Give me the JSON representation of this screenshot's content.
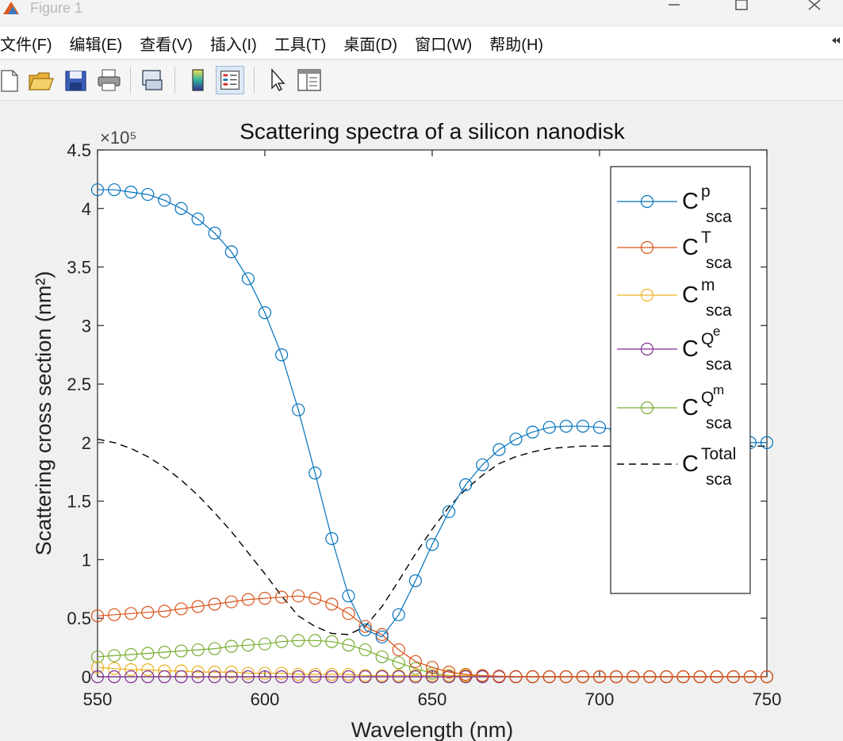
{
  "window": {
    "title": "Figure 1"
  },
  "menu": {
    "items": [
      "文件(F)",
      "编辑(E)",
      "查看(V)",
      "插入(I)",
      "工具(T)",
      "桌面(D)",
      "窗口(W)",
      "帮助(H)"
    ]
  },
  "toolbar": {
    "buttons": [
      "new-figure-icon",
      "open-file-icon",
      "save-icon",
      "print-icon",
      "link-plot-icon",
      "colorbar-icon",
      "legend-icon",
      "edit-plot-icon",
      "property-inspector-icon"
    ]
  },
  "chart_data": {
    "type": "line",
    "title": "Scattering spectra of a silicon nanodisk",
    "xlabel": "Wavelength (nm)",
    "ylabel": "Scattering cross section (nm²)",
    "y_exponent_label": "×10⁵",
    "xlim": [
      550,
      750
    ],
    "ylim": [
      0,
      4.5
    ],
    "xticks": [
      550,
      600,
      650,
      700,
      750
    ],
    "yticks": [
      0,
      0.5,
      1,
      1.5,
      2,
      2.5,
      3,
      3.5,
      4,
      4.5
    ],
    "ytick_labels": [
      "0",
      "0.5",
      "1",
      "1.5",
      "2",
      "2.5",
      "3",
      "3.5",
      "4",
      "4.5"
    ],
    "grid": false,
    "legend_position": "top-right",
    "x": [
      550,
      555,
      560,
      565,
      570,
      575,
      580,
      585,
      590,
      595,
      600,
      605,
      610,
      615,
      620,
      625,
      630,
      635,
      640,
      645,
      650,
      655,
      660,
      665,
      670,
      675,
      680,
      685,
      690,
      695,
      700,
      705,
      710,
      715,
      720,
      725,
      730,
      735,
      740,
      745,
      750
    ],
    "series": [
      {
        "name": "C^p_sca",
        "base": "C",
        "sup": "p",
        "sub": "sca",
        "color": "#0072bd",
        "line": "solid",
        "marker": "circle",
        "values": [
          4.16,
          4.16,
          4.14,
          4.12,
          4.07,
          4.0,
          3.91,
          3.79,
          3.63,
          3.4,
          3.11,
          2.75,
          2.28,
          1.74,
          1.18,
          0.69,
          0.4,
          0.34,
          0.53,
          0.82,
          1.13,
          1.41,
          1.64,
          1.81,
          1.94,
          2.03,
          2.09,
          2.13,
          2.14,
          2.14,
          2.13,
          2.11,
          2.09,
          2.07,
          2.05,
          2.04,
          2.02,
          2.01,
          2.01,
          2.0,
          2.0
        ]
      },
      {
        "name": "C^T_sca",
        "base": "C",
        "sup": "T",
        "sub": "sca",
        "color": "#d95319",
        "line": "solid",
        "marker": "circle",
        "values": [
          0.52,
          0.53,
          0.54,
          0.55,
          0.56,
          0.58,
          0.6,
          0.62,
          0.64,
          0.66,
          0.67,
          0.68,
          0.69,
          0.67,
          0.62,
          0.54,
          0.43,
          0.36,
          0.23,
          0.13,
          0.08,
          0.04,
          0.02,
          0.01,
          0.005,
          0.002,
          0.001,
          0.0,
          0.0,
          0.0,
          0.0,
          0.0,
          0.0,
          0.0,
          0.0,
          0.0,
          0.0,
          0.0,
          0.0,
          0.0,
          0.0
        ]
      },
      {
        "name": "C^m_sca",
        "base": "C",
        "sup": "m",
        "sub": "sca",
        "color": "#edb120",
        "line": "solid",
        "marker": "circle",
        "values": [
          0.08,
          0.07,
          0.06,
          0.06,
          0.05,
          0.05,
          0.04,
          0.04,
          0.04,
          0.03,
          0.03,
          0.03,
          0.02,
          0.02,
          0.02,
          0.02,
          0.01,
          0.01,
          0.01,
          0.01,
          0.01,
          0.01,
          0.01,
          0.01,
          0.0,
          0.0,
          0.0,
          0.0,
          0.0,
          0.0,
          0.0,
          0.0,
          0.0,
          0.0,
          0.0,
          0.0,
          0.0,
          0.0,
          0.0,
          0.0,
          0.0
        ]
      },
      {
        "name": "C^Qe_sca",
        "base": "C",
        "sup": "Q",
        "supsup": "e",
        "sub": "sca",
        "color": "#7e2f8e",
        "line": "solid",
        "marker": "circle",
        "values": [
          0.0,
          0.0,
          0.0,
          0.0,
          0.0,
          0.0,
          0.0,
          0.0,
          0.0,
          0.0,
          0.0,
          0.0,
          0.0,
          0.0,
          0.0,
          0.0,
          0.0,
          0.0,
          0.0,
          0.0,
          0.0,
          0.0,
          0.0,
          0.0,
          0.0,
          0.0,
          0.0,
          0.0,
          0.0,
          0.0,
          0.0,
          0.0,
          0.0,
          0.0,
          0.0,
          0.0,
          0.0,
          0.0,
          0.0,
          0.0,
          0.0
        ]
      },
      {
        "name": "C^Qm_sca",
        "base": "C",
        "sup": "Q",
        "supsup": "m",
        "sub": "sca",
        "color": "#77ac30",
        "line": "solid",
        "marker": "circle",
        "values": [
          0.17,
          0.18,
          0.19,
          0.2,
          0.21,
          0.22,
          0.23,
          0.24,
          0.26,
          0.27,
          0.28,
          0.3,
          0.31,
          0.31,
          0.3,
          0.27,
          0.23,
          0.17,
          0.12,
          0.07,
          0.03,
          0.01,
          0.005,
          0.002,
          0.0,
          0.0,
          0.0,
          0.0,
          0.0,
          0.0,
          0.0,
          0.0,
          0.0,
          0.0,
          0.0,
          0.0,
          0.0,
          0.0,
          0.0,
          0.0,
          0.0
        ]
      },
      {
        "name": "C^Total_sca",
        "base": "C",
        "sup": "Total",
        "sub": "sca",
        "color": "#000000",
        "line": "dashed",
        "marker": "none",
        "values": [
          2.03,
          2.0,
          1.95,
          1.88,
          1.79,
          1.68,
          1.55,
          1.4,
          1.24,
          1.06,
          0.88,
          0.69,
          0.52,
          0.43,
          0.37,
          0.36,
          0.43,
          0.6,
          0.82,
          1.05,
          1.26,
          1.45,
          1.6,
          1.72,
          1.82,
          1.88,
          1.92,
          1.95,
          1.96,
          1.97,
          1.97,
          1.97,
          1.97,
          1.97,
          1.97,
          1.97,
          1.97,
          1.97,
          1.97,
          1.97,
          1.97
        ]
      }
    ]
  }
}
